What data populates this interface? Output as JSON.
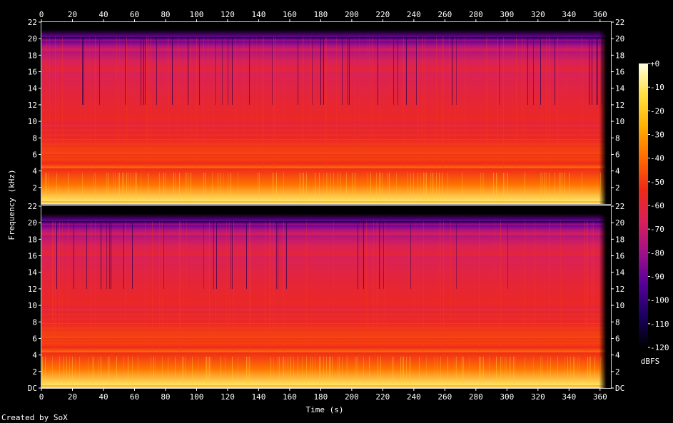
{
  "chart_data": {
    "type": "heatmap",
    "title": "",
    "xlabel": "Time (s)",
    "ylabel": "Frequency (kHz)",
    "credit": "Created by SoX",
    "x_range": [
      0,
      367
    ],
    "x_ticks": [
      0,
      20,
      40,
      60,
      80,
      100,
      120,
      140,
      160,
      180,
      200,
      220,
      240,
      260,
      280,
      300,
      320,
      340,
      360
    ],
    "y_range_khz": [
      0,
      22
    ],
    "y_ticks": [
      "DC",
      "2",
      "4",
      "6",
      "8",
      "10",
      "12",
      "14",
      "16",
      "18",
      "20",
      "22"
    ],
    "y_tick_values": [
      0,
      2,
      4,
      6,
      8,
      10,
      12,
      14,
      16,
      18,
      20,
      22
    ],
    "channels": 2,
    "colorbar": {
      "label": "dBFS",
      "range": [
        -120,
        0
      ],
      "ticks": [
        "+0",
        "-10",
        "-20",
        "-30",
        "-40",
        "-50",
        "-60",
        "-70",
        "-80",
        "-90",
        "-100",
        "-110",
        "-120"
      ],
      "tick_values": [
        0,
        -10,
        -20,
        -30,
        -40,
        -50,
        -60,
        -70,
        -80,
        -90,
        -100,
        -110,
        -120
      ],
      "colors": [
        "#000000",
        "#1a0060",
        "#55009a",
        "#a0108a",
        "#d8205a",
        "#f02a18",
        "#ff6a00",
        "#ffb000",
        "#ffe040",
        "#ffffe0"
      ]
    },
    "bands_khz_dbfs": [
      {
        "from": 0,
        "to": 0.3,
        "dbfs": -10
      },
      {
        "from": 0.3,
        "to": 4.3,
        "dbfs": -38
      },
      {
        "from": 4.3,
        "to": 5.5,
        "dbfs": -54
      },
      {
        "from": 5.5,
        "to": 6.0,
        "dbfs": -48
      },
      {
        "from": 6.0,
        "to": 10.0,
        "dbfs": -56
      },
      {
        "from": 10.0,
        "to": 16.0,
        "dbfs": -60
      },
      {
        "from": 16.0,
        "to": 18.5,
        "dbfs": -66
      },
      {
        "from": 18.5,
        "to": 19.7,
        "dbfs": -76
      },
      {
        "from": 19.7,
        "to": 20.2,
        "dbfs": -90
      },
      {
        "from": 20.2,
        "to": 22,
        "dbfs": -120
      }
    ],
    "audio_end_s": 364
  }
}
